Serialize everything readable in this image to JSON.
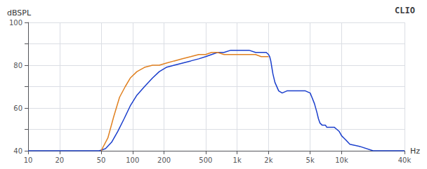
{
  "chart_data": {
    "type": "line",
    "title": "CLIO",
    "xlabel": "Hz",
    "ylabel": "dBSPL",
    "log": "x",
    "grid": true,
    "xlim": [
      10,
      40000
    ],
    "ylim": [
      40,
      100
    ],
    "xticks": [
      10,
      20,
      50,
      100,
      200,
      500,
      {
        "value": 1000,
        "label": "1k"
      },
      {
        "value": 2000,
        "label": "2k"
      },
      {
        "value": 5000,
        "label": "5k"
      },
      {
        "value": 10000,
        "label": "10k"
      },
      {
        "value": 40000,
        "label": "40k"
      }
    ],
    "yticks": [
      40,
      {
        "value": 50,
        "label": ""
      },
      60,
      {
        "value": 70,
        "label": ""
      },
      80,
      {
        "value": 90,
        "label": ""
      },
      100
    ],
    "series": [
      {
        "color": "#1a3ecc",
        "x": [
          10,
          30,
          40,
          48,
          55,
          63,
          72,
          83,
          95,
          110,
          130,
          155,
          180,
          210,
          250,
          300,
          360,
          430,
          500,
          570,
          650,
          750,
          870,
          1000,
          1150,
          1300,
          1500,
          1700,
          1900,
          2000,
          2050,
          2100,
          2150,
          2200,
          2300,
          2500,
          2700,
          3000,
          3500,
          4000,
          4500,
          5000,
          5200,
          5500,
          5800,
          6000,
          6200,
          6500,
          6800,
          7000,
          7200,
          7500,
          7800,
          8000,
          8500,
          9000,
          9500,
          10000,
          10500,
          11000,
          12000,
          15000,
          20000,
          30000,
          40000
        ],
        "values": [
          40,
          40,
          40,
          40,
          41,
          44,
          49,
          55,
          61,
          66,
          70,
          74,
          77,
          79,
          80,
          81,
          82,
          83,
          84,
          85,
          86,
          86,
          87,
          87,
          87,
          87,
          86,
          86,
          86,
          85,
          84,
          82,
          79,
          76,
          72,
          68,
          67,
          68,
          68,
          68,
          68,
          67,
          65,
          62,
          58,
          55,
          53,
          52,
          52,
          52,
          51,
          51,
          51,
          51,
          51,
          50,
          49,
          47,
          46,
          45,
          43,
          42,
          40,
          40,
          40
        ]
      },
      {
        "color": "#e08020",
        "x": [
          50,
          58,
          66,
          75,
          85,
          95,
          110,
          130,
          155,
          180,
          210,
          250,
          300,
          360,
          430,
          500,
          570,
          650,
          750,
          870,
          1000,
          1150,
          1300,
          1500,
          1700,
          1900,
          2000
        ],
        "values": [
          40,
          46,
          56,
          65,
          70,
          74,
          77,
          79,
          80,
          80,
          81,
          82,
          83,
          84,
          85,
          85,
          86,
          86,
          85,
          85,
          85,
          85,
          85,
          85,
          84,
          84,
          84
        ]
      }
    ]
  }
}
